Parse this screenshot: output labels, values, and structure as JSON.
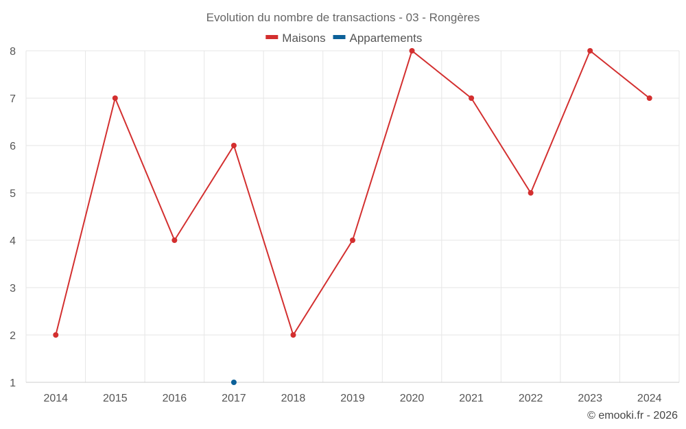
{
  "chart_data": {
    "type": "line",
    "title": "Evolution du nombre de transactions - 03 - Rongères",
    "categories": [
      "2014",
      "2015",
      "2016",
      "2017",
      "2018",
      "2019",
      "2020",
      "2021",
      "2022",
      "2023",
      "2024"
    ],
    "series": [
      {
        "name": "Maisons",
        "color": "#d32f2f",
        "values": [
          2,
          7,
          4,
          6,
          2,
          4,
          8,
          7,
          5,
          8,
          7
        ]
      },
      {
        "name": "Appartements",
        "color": "#0d6199",
        "values": [
          null,
          null,
          null,
          1,
          null,
          null,
          null,
          null,
          null,
          null,
          null
        ]
      }
    ],
    "ylim": [
      1,
      8
    ],
    "yticks": [
      1,
      2,
      3,
      4,
      5,
      6,
      7,
      8
    ],
    "grid": true,
    "legend_position": "top-center"
  },
  "credit": "© emooki.fr - 2026"
}
